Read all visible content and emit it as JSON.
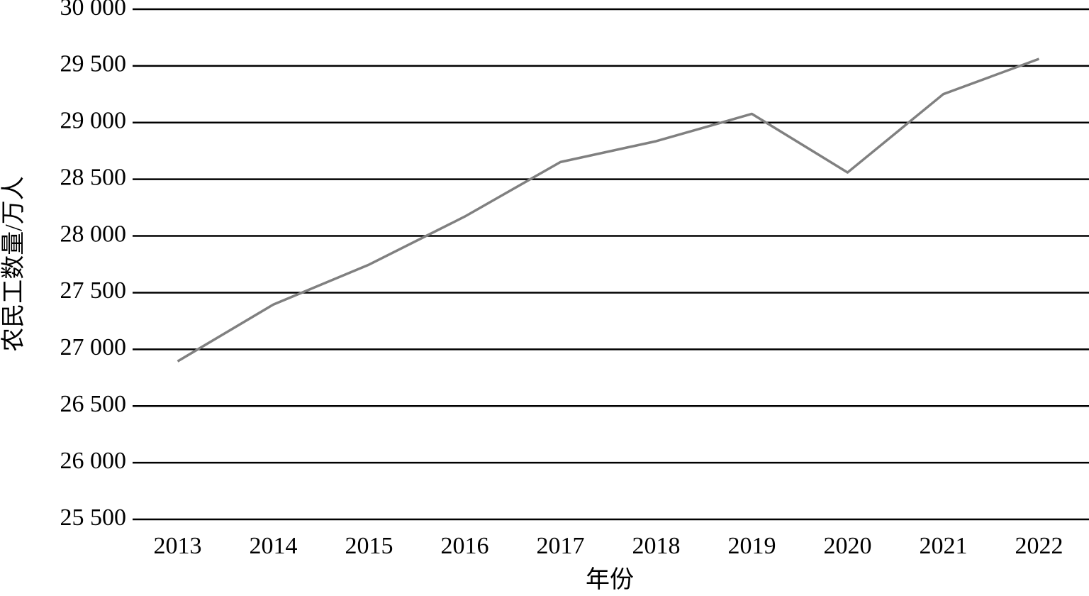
{
  "chart_data": {
    "type": "line",
    "x_label": "年份",
    "y_label": "农民工数量/万人",
    "categories": [
      "2013",
      "2014",
      "2015",
      "2016",
      "2017",
      "2018",
      "2019",
      "2020",
      "2021",
      "2022"
    ],
    "series": [
      {
        "color": "#808080",
        "values": [
          26894,
          27395,
          27747,
          28171,
          28652,
          28836,
          29077,
          28560,
          29251,
          29562
        ]
      }
    ],
    "ylim": [
      25500,
      30000
    ],
    "yticks": [
      {
        "value": 25500,
        "label": "25 500"
      },
      {
        "value": 26000,
        "label": "26 000"
      },
      {
        "value": 26500,
        "label": "26 500"
      },
      {
        "value": 27000,
        "label": "27 000"
      },
      {
        "value": 27500,
        "label": "27 500"
      },
      {
        "value": 28000,
        "label": "28 000"
      },
      {
        "value": 28500,
        "label": "28 500"
      },
      {
        "value": 29000,
        "label": "29 000"
      },
      {
        "value": 29500,
        "label": "29 500"
      },
      {
        "value": 30000,
        "label": "30 000"
      }
    ],
    "grid": true
  }
}
